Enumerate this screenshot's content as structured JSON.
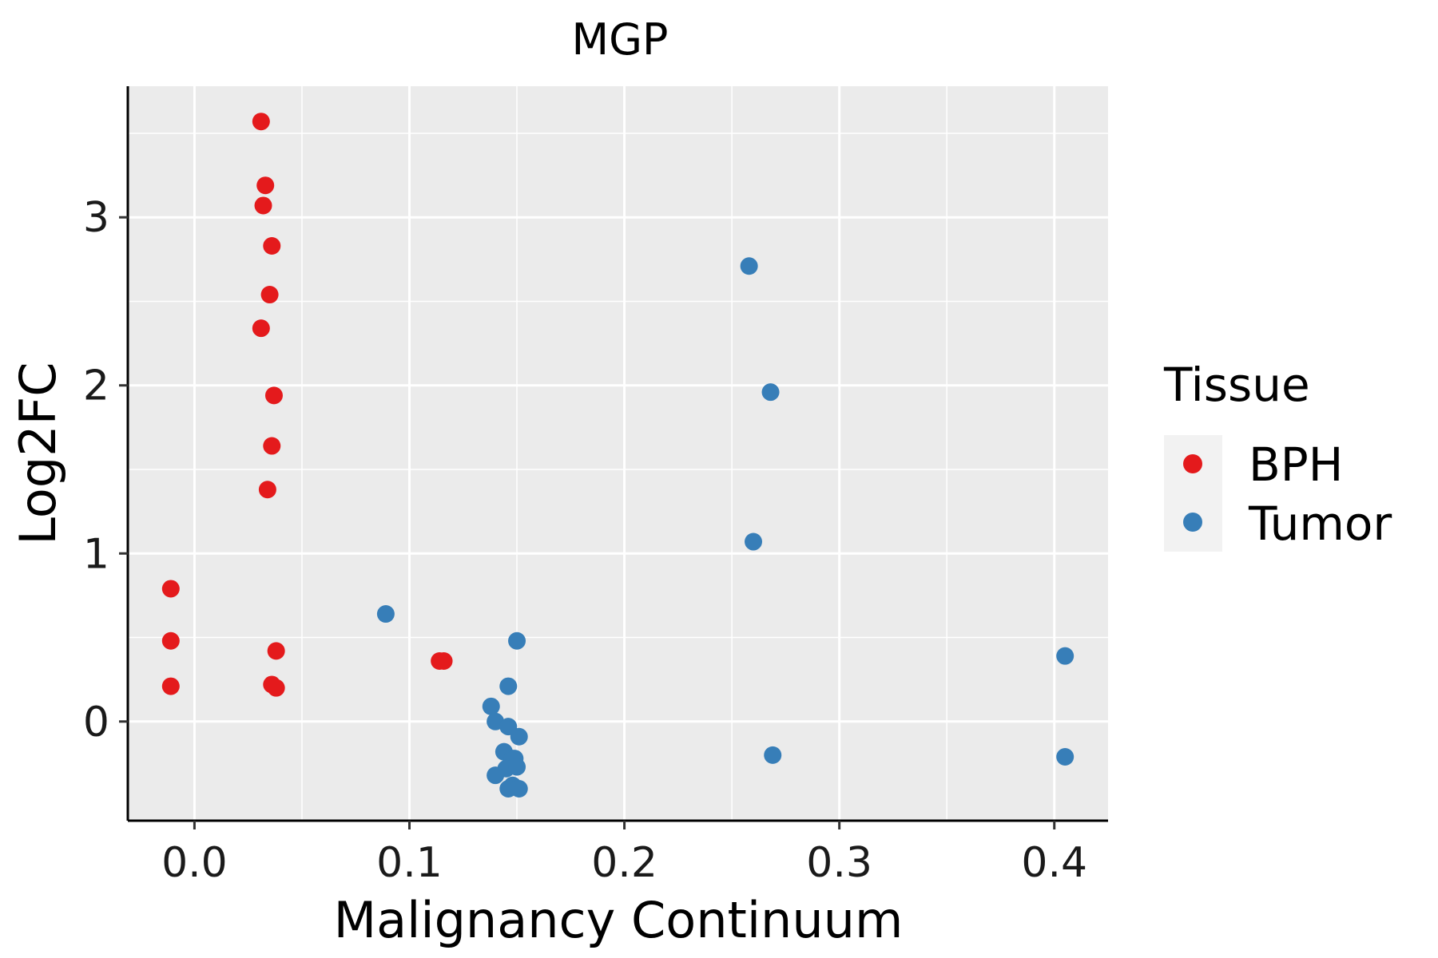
{
  "chart_data": {
    "type": "scatter",
    "title": "MGP",
    "xlabel": "Malignancy Continuum",
    "ylabel": "Log2FC",
    "xlim": [
      -0.031,
      0.425
    ],
    "ylim": [
      -0.59,
      3.78
    ],
    "x_ticks": [
      0.0,
      0.1,
      0.2,
      0.3,
      0.4
    ],
    "x_tick_labels": [
      "0.0",
      "0.1",
      "0.2",
      "0.3",
      "0.4"
    ],
    "x_minor": [
      0.05,
      0.15,
      0.25,
      0.35
    ],
    "y_ticks": [
      0,
      1,
      2,
      3
    ],
    "y_tick_labels": [
      "0",
      "1",
      "2",
      "3"
    ],
    "y_minor": [
      0.5,
      1.5,
      2.5,
      3.5
    ],
    "grid": true,
    "legend": {
      "title": "Tissue",
      "position": "right",
      "entries": [
        "BPH",
        "Tumor"
      ]
    },
    "series": [
      {
        "name": "BPH",
        "color": "#e41a1c",
        "points": [
          [
            0.031,
            3.57
          ],
          [
            0.033,
            3.19
          ],
          [
            0.032,
            3.07
          ],
          [
            0.036,
            2.83
          ],
          [
            0.035,
            2.54
          ],
          [
            0.031,
            2.34
          ],
          [
            0.037,
            1.94
          ],
          [
            0.036,
            1.64
          ],
          [
            0.034,
            1.38
          ],
          [
            -0.011,
            0.79
          ],
          [
            -0.011,
            0.48
          ],
          [
            0.038,
            0.42
          ],
          [
            -0.011,
            0.21
          ],
          [
            0.036,
            0.22
          ],
          [
            0.038,
            0.2
          ],
          [
            0.114,
            0.36
          ],
          [
            0.116,
            0.36
          ]
        ]
      },
      {
        "name": "Tumor",
        "color": "#377eb8",
        "points": [
          [
            0.258,
            2.71
          ],
          [
            0.268,
            1.96
          ],
          [
            0.26,
            1.07
          ],
          [
            0.089,
            0.64
          ],
          [
            0.15,
            0.48
          ],
          [
            0.405,
            0.39
          ],
          [
            0.146,
            0.21
          ],
          [
            0.138,
            0.09
          ],
          [
            0.14,
            0.0
          ],
          [
            0.146,
            -0.03
          ],
          [
            0.151,
            -0.09
          ],
          [
            0.144,
            -0.18
          ],
          [
            0.148,
            -0.22
          ],
          [
            0.149,
            -0.22
          ],
          [
            0.145,
            -0.28
          ],
          [
            0.15,
            -0.27
          ],
          [
            0.14,
            -0.32
          ],
          [
            0.148,
            -0.38
          ],
          [
            0.146,
            -0.4
          ],
          [
            0.151,
            -0.4
          ],
          [
            0.269,
            -0.2
          ],
          [
            0.405,
            -0.21
          ]
        ]
      }
    ]
  }
}
